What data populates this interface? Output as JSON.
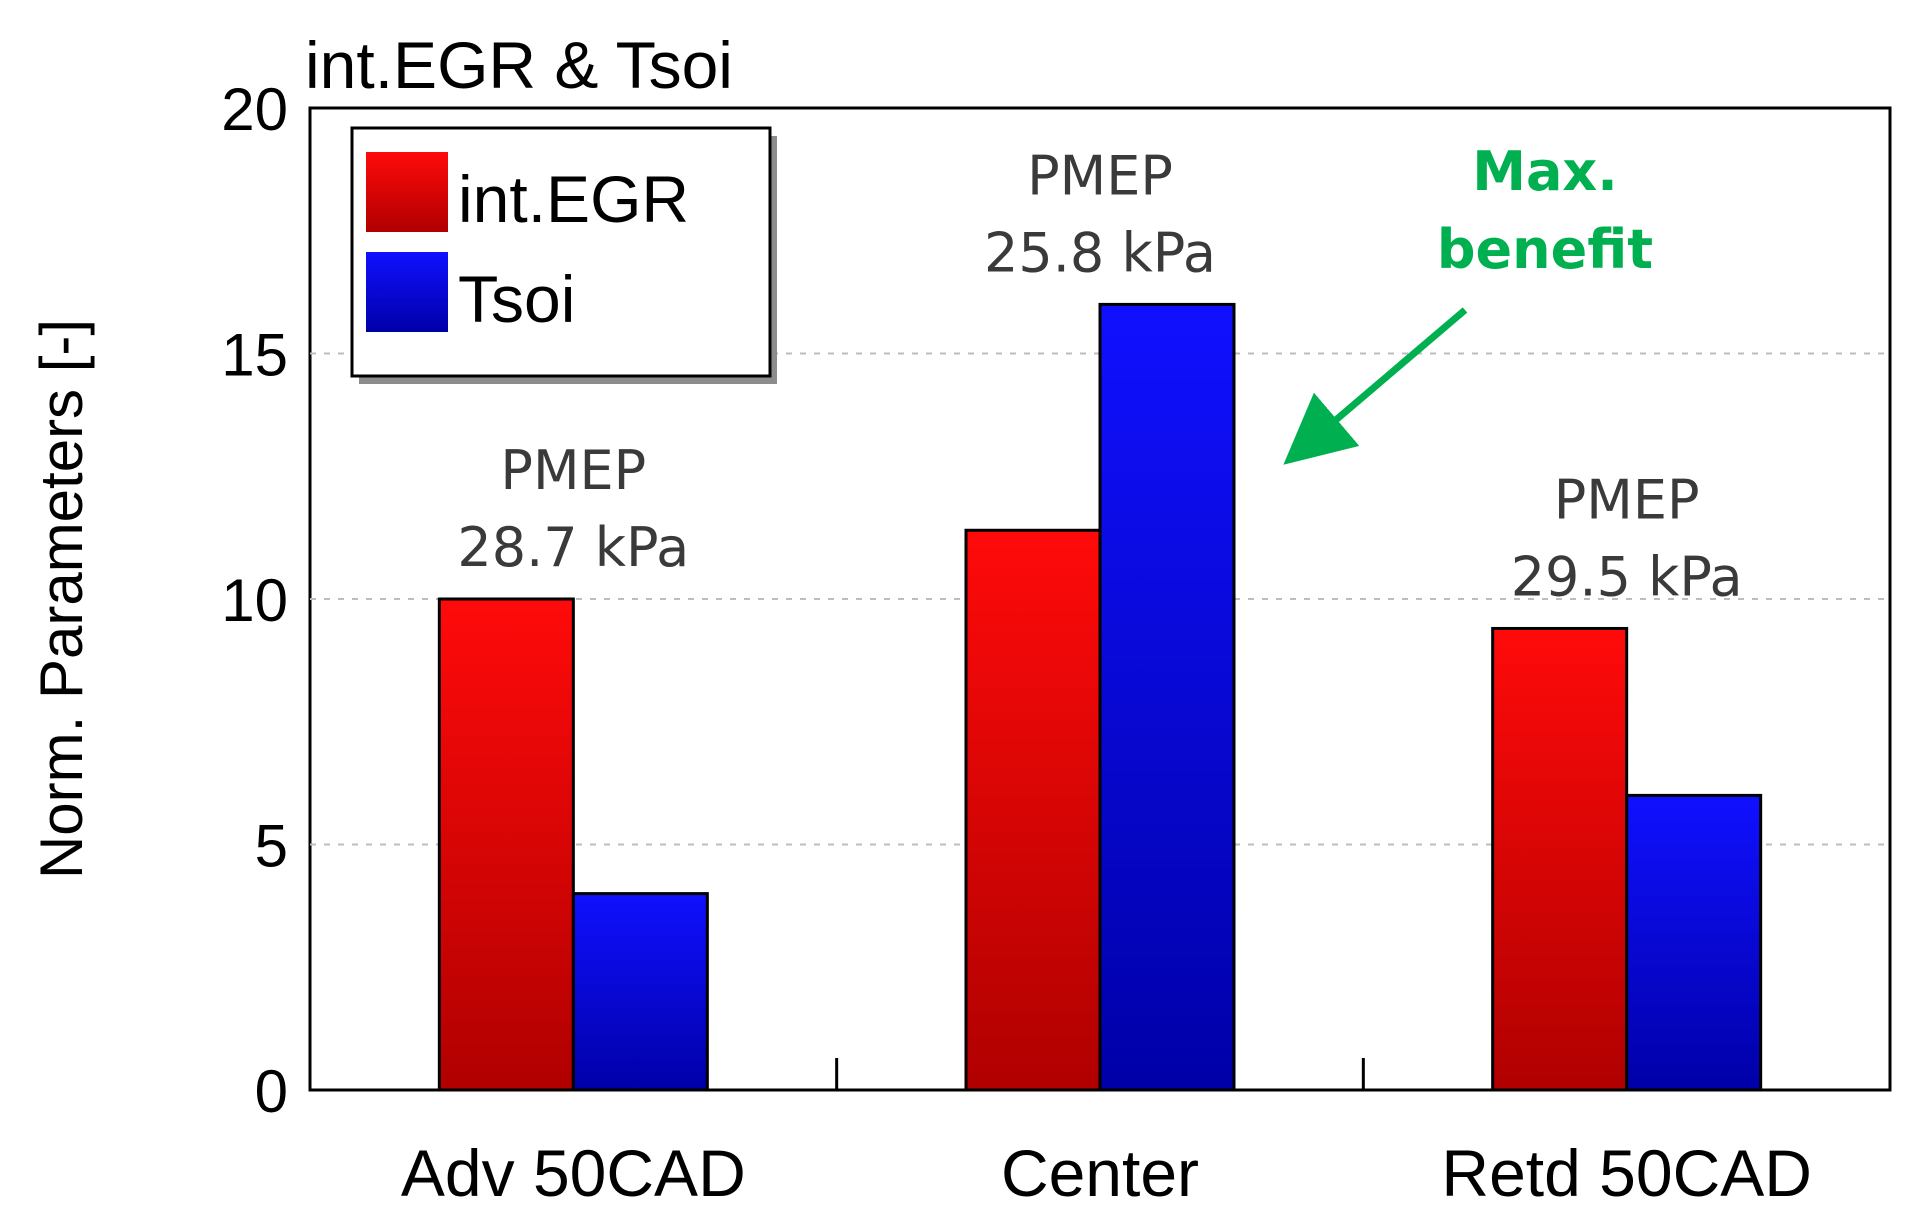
{
  "chart_data": {
    "type": "bar",
    "title": "int.EGR & Tsoi",
    "xlabel": "",
    "ylabel": "Norm. Parameters [-]",
    "ylim": [
      0,
      20
    ],
    "yticks": [
      0,
      5,
      10,
      15,
      20
    ],
    "grid": true,
    "legend": "top-left",
    "categories": [
      "Adv 50CAD",
      "Center",
      "Retd 50CAD"
    ],
    "series": [
      {
        "name": "int.EGR",
        "values": [
          10.0,
          11.4,
          9.4
        ],
        "color": "#e00000"
      },
      {
        "name": "Tsoi",
        "values": [
          4.0,
          16.0,
          6.0
        ],
        "color": "#0000e0"
      }
    ],
    "annotations": [
      {
        "category": "Adv 50CAD",
        "line1": "PMEP",
        "line2": "28.7 kPa"
      },
      {
        "category": "Center",
        "line1": "PMEP",
        "line2": "25.8 kPa"
      },
      {
        "category": "Retd 50CAD",
        "line1": "PMEP",
        "line2": "29.5 kPa"
      }
    ],
    "arrow_annotation": {
      "line1": "Max.",
      "line2": "benefit",
      "color": "#00b050"
    }
  }
}
